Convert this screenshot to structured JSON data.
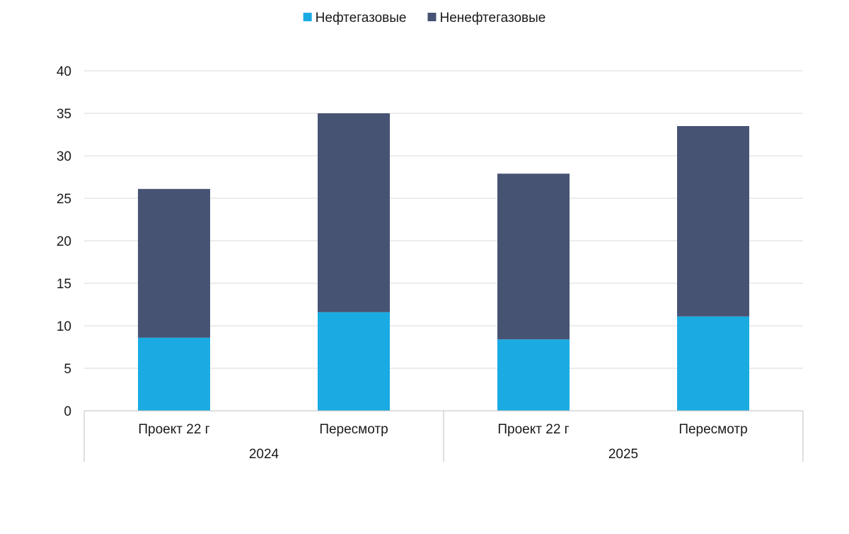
{
  "chart_data": {
    "type": "bar",
    "stacked": true,
    "groups": [
      {
        "label": "2024",
        "categories": [
          "Проект 22 г",
          "Пересмотр"
        ]
      },
      {
        "label": "2025",
        "categories": [
          "Проект 22 г",
          "Пересмотр"
        ]
      }
    ],
    "categories": [
      "Проект 22 г",
      "Пересмотр",
      "Проект 22 г",
      "Пересмотр"
    ],
    "series": [
      {
        "name": "Нефтегазовые",
        "color": "#1aabe2",
        "values": [
          8.6,
          11.6,
          8.4,
          11.1
        ]
      },
      {
        "name": "Ненефтегазовые",
        "color": "#465373",
        "values": [
          17.5,
          23.4,
          19.5,
          22.4
        ]
      }
    ],
    "y_ticks": [
      "0",
      "5",
      "10",
      "15",
      "20",
      "25",
      "30",
      "35",
      "40"
    ],
    "ylim": [
      0,
      40
    ],
    "ystep": 5,
    "grid": true,
    "legend_position": "top-center",
    "title": "",
    "xlabel": "",
    "ylabel": ""
  }
}
